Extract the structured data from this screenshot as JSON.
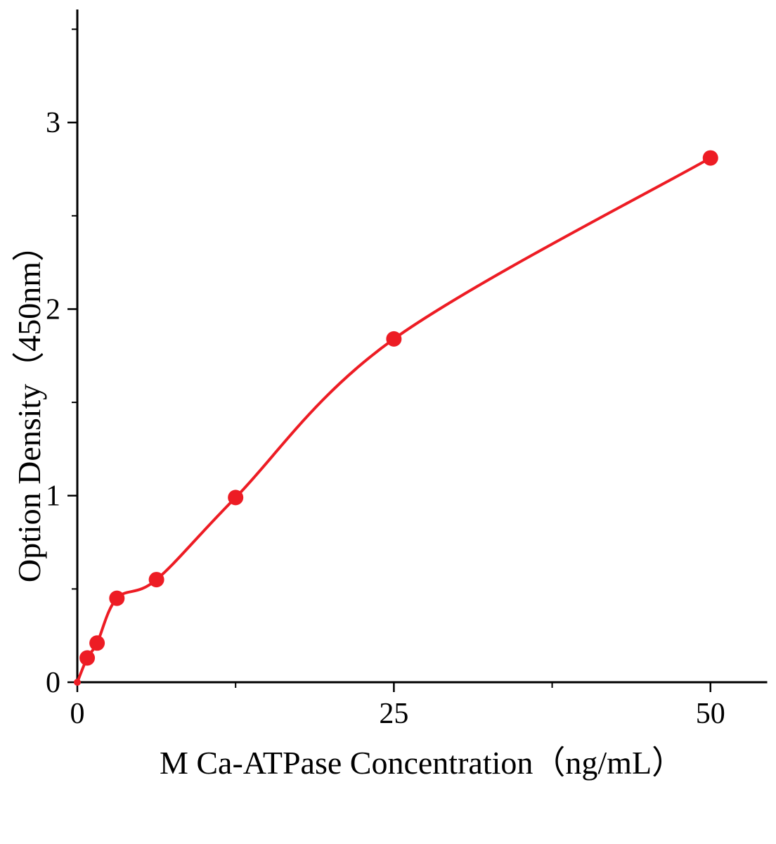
{
  "chart_data": {
    "type": "scatter",
    "title": "",
    "xlabel": "M Ca-ATPase Concentration（ng/mL）",
    "ylabel": "Option Density（450nm）",
    "points": [
      {
        "x": 0,
        "y": 0.0
      },
      {
        "x": 0.78,
        "y": 0.13
      },
      {
        "x": 1.56,
        "y": 0.21
      },
      {
        "x": 3.125,
        "y": 0.45
      },
      {
        "x": 6.25,
        "y": 0.55
      },
      {
        "x": 12.5,
        "y": 0.99
      },
      {
        "x": 25,
        "y": 1.84
      },
      {
        "x": 50,
        "y": 2.81
      }
    ],
    "curve": "smooth fit through standard points",
    "xlim": [
      0,
      54.4
    ],
    "ylim": [
      0,
      3.6
    ],
    "xticks": [
      0,
      25,
      50
    ],
    "yticks": [
      0,
      1,
      2,
      3
    ],
    "x_minor_ticks": [
      12.5,
      37.5
    ],
    "y_minor_ticks": [
      0.5,
      1.5,
      2.5,
      3.5
    ],
    "grid": false,
    "legend": false,
    "marker_color": "#ed1c24",
    "line_color": "#ed1c24",
    "axis_color": "#000000"
  }
}
